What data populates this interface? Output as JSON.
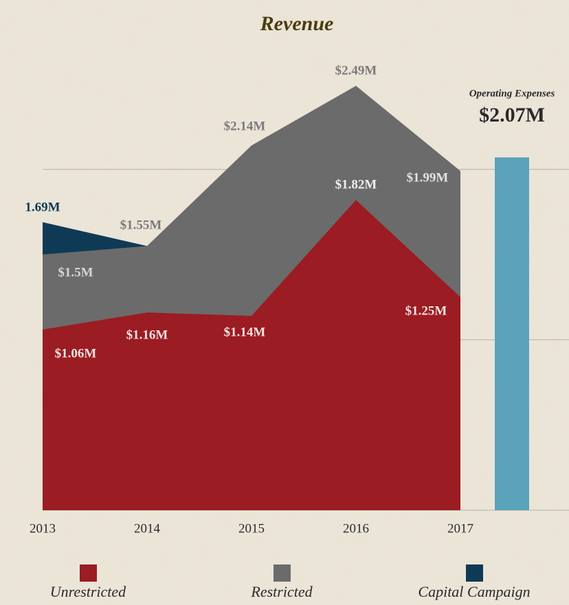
{
  "chart_data": [
    {
      "type": "area",
      "title": "Revenue",
      "categories": [
        "2013",
        "2014",
        "2015",
        "2016",
        "2017"
      ],
      "series": [
        {
          "name": "Unrestricted",
          "color": "#9b1c22",
          "values": [
            1.06,
            1.16,
            1.14,
            1.82,
            1.25
          ],
          "value_labels": [
            "$1.06M",
            "$1.16M",
            "$1.14M",
            "$1.82M",
            "$1.25M"
          ]
        },
        {
          "name": "Restricted",
          "color": "#6b6b6b",
          "values": [
            1.5,
            1.55,
            2.14,
            2.49,
            1.99
          ],
          "value_labels": [
            "$1.5M",
            "$1.55M",
            "$2.14M",
            "$2.49M",
            "$1.99M"
          ]
        },
        {
          "name": "Capital Campaign",
          "color": "#0f3a56",
          "values": [
            1.69,
            1.55,
            null,
            null,
            null
          ],
          "value_labels": [
            "1.69M",
            null,
            null,
            null,
            null
          ]
        }
      ],
      "ylim": [
        0,
        2.8
      ],
      "yticks": [
        0,
        1,
        2
      ],
      "grid": true
    },
    {
      "type": "bar",
      "title": "Operating Expenses",
      "values": [
        2.07
      ],
      "value_labels": [
        "$2.07M"
      ],
      "color": "#5aa3ba",
      "ylim": [
        0,
        2.8
      ]
    }
  ]
}
